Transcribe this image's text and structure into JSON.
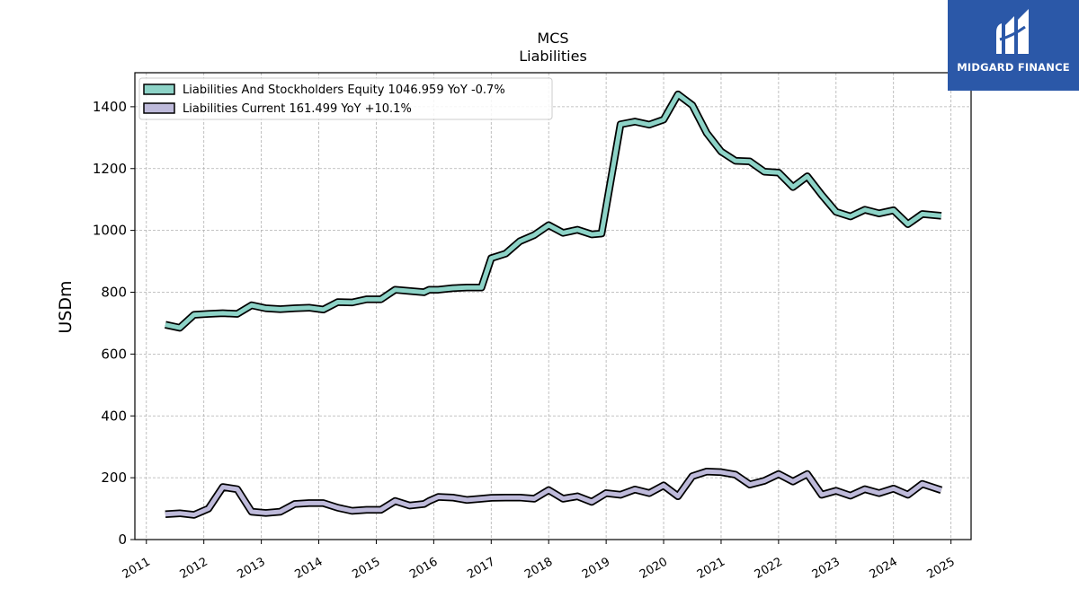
{
  "logo": {
    "text": "MIDGARD FINANCE",
    "background": "#2b58a8"
  },
  "chart_data": {
    "type": "line",
    "title": "MCS",
    "subtitle": "Liabilities",
    "ylabel": "USDm",
    "xlabel": "",
    "xlim": [
      2010.8,
      2025.35
    ],
    "ylim": [
      0,
      1510
    ],
    "yticks": [
      0,
      200,
      400,
      600,
      800,
      1000,
      1200,
      1400
    ],
    "xticks": [
      2011,
      2012,
      2013,
      2014,
      2015,
      2016,
      2017,
      2018,
      2019,
      2020,
      2021,
      2022,
      2023,
      2024,
      2025
    ],
    "grid": true,
    "legend_position": "top-left",
    "series": [
      {
        "name": "Liabilities And Stockholders Equity",
        "legend": "Liabilities And Stockholders Equity  1046.959 YoY -0.7%",
        "color": "#8dd3c7",
        "x": [
          2011.33,
          2011.58,
          2011.83,
          2012.08,
          2012.33,
          2012.58,
          2012.83,
          2013.08,
          2013.33,
          2013.58,
          2013.83,
          2014.08,
          2014.33,
          2014.58,
          2014.83,
          2015.08,
          2015.33,
          2015.58,
          2015.83,
          2015.92,
          2016.08,
          2016.33,
          2016.58,
          2016.83,
          2017.0,
          2017.25,
          2017.5,
          2017.75,
          2018.0,
          2018.25,
          2018.5,
          2018.75,
          2018.92,
          2019.25,
          2019.5,
          2019.75,
          2020.0,
          2020.25,
          2020.5,
          2020.75,
          2021.0,
          2021.25,
          2021.5,
          2021.75,
          2022.0,
          2022.25,
          2022.5,
          2022.75,
          2023.0,
          2023.25,
          2023.5,
          2023.75,
          2024.0,
          2024.25,
          2024.5,
          2024.83
        ],
        "y": [
          695,
          685,
          727,
          730,
          732,
          730,
          758,
          748,
          745,
          748,
          750,
          744,
          768,
          767,
          777,
          777,
          808,
          804,
          800,
          808,
          808,
          813,
          815,
          815,
          910,
          925,
          965,
          985,
          1017,
          992,
          1002,
          987,
          990,
          1343,
          1352,
          1342,
          1358,
          1440,
          1405,
          1315,
          1255,
          1225,
          1223,
          1190,
          1187,
          1140,
          1175,
          1115,
          1060,
          1045,
          1067,
          1055,
          1065,
          1020,
          1053,
          1047
        ]
      },
      {
        "name": "Liabilities Current",
        "legend": "Liabilities Current  161.499 YoY +10.1%",
        "color": "#bebada",
        "x": [
          2011.33,
          2011.58,
          2011.83,
          2012.08,
          2012.33,
          2012.58,
          2012.83,
          2013.08,
          2013.33,
          2013.58,
          2013.83,
          2014.08,
          2014.33,
          2014.58,
          2014.83,
          2015.08,
          2015.33,
          2015.58,
          2015.83,
          2015.92,
          2016.08,
          2016.33,
          2016.58,
          2016.83,
          2017.0,
          2017.25,
          2017.5,
          2017.75,
          2018.0,
          2018.25,
          2018.5,
          2018.75,
          2019.0,
          2019.25,
          2019.5,
          2019.75,
          2020.0,
          2020.25,
          2020.5,
          2020.75,
          2021.0,
          2021.25,
          2021.5,
          2021.75,
          2022.0,
          2022.25,
          2022.5,
          2022.75,
          2023.0,
          2023.25,
          2023.5,
          2023.75,
          2024.0,
          2024.25,
          2024.5,
          2024.83
        ],
        "y": [
          82,
          85,
          80,
          100,
          170,
          163,
          90,
          86,
          90,
          115,
          118,
          118,
          103,
          93,
          96,
          96,
          125,
          110,
          115,
          125,
          138,
          136,
          128,
          132,
          135,
          136,
          136,
          132,
          160,
          132,
          140,
          122,
          150,
          145,
          162,
          150,
          175,
          140,
          205,
          220,
          218,
          210,
          178,
          190,
          212,
          188,
          212,
          145,
          158,
          142,
          163,
          150,
          165,
          145,
          180,
          160
        ]
      }
    ]
  }
}
